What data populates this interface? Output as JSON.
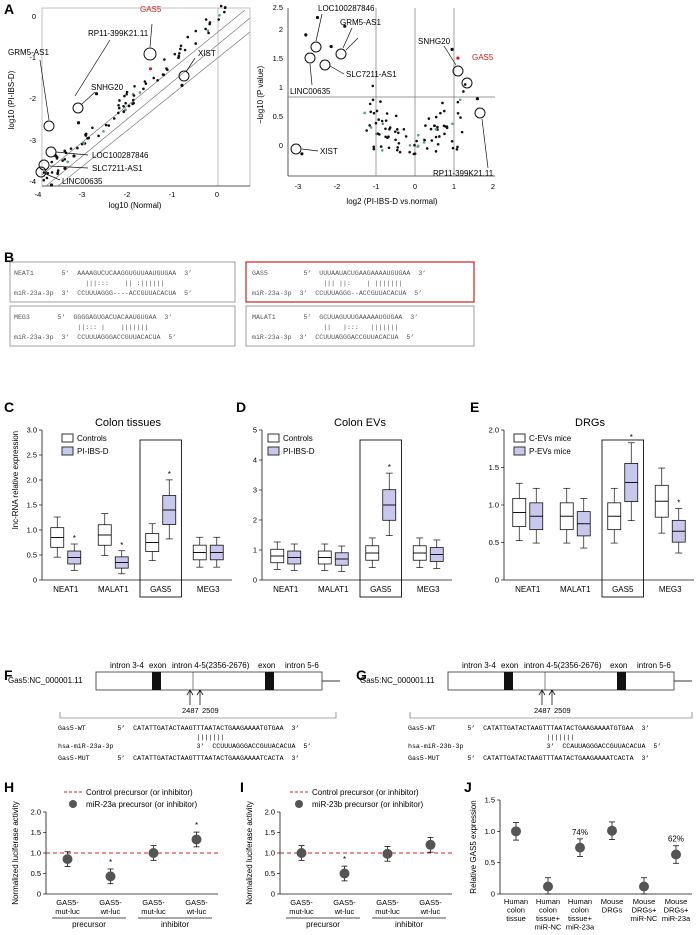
{
  "colors": {
    "accent": "#cc2222",
    "box_fill": "#c8c8ec",
    "dot": "#555555",
    "teal": "#5a9a8a"
  },
  "panel_a": {
    "label": "A",
    "scatter": {
      "xlabel": "log10 (Normal)",
      "ylabel": "log10 (PI-IBS-D)",
      "xticks": [
        "-4",
        "-3",
        "-2",
        "-1",
        "0"
      ],
      "yticks": [
        "-4",
        "-3",
        "-2",
        "-1",
        "0"
      ],
      "annotations": [
        "GAS5",
        "RP11-399K21.11",
        "GRM5-AS1",
        "SNHG20",
        "XIST",
        "LOC100287846",
        "SLC7211-AS1",
        "LINC00635"
      ]
    },
    "volcano": {
      "xlabel": "log2 (PI-IBS-D vs.normal)",
      "ylabel": "−log10 (P value)",
      "xticks": [
        "-3",
        "-2",
        "-1",
        "0",
        "1",
        "2"
      ],
      "yticks": [
        "0",
        "0.5",
        "1",
        "1.5",
        "2",
        "2.5"
      ],
      "annotations": [
        "LOC100287846",
        "GRM5-AS1",
        "SLC7211-AS1",
        "LINC00635",
        "SNHG20",
        "GAS5",
        "XIST",
        "RP11-399K21.11"
      ]
    }
  },
  "panel_b": {
    "label": "B",
    "boxes": [
      {
        "name": "NEAT1",
        "l1": "NEAT1       5’  AAAAGUCUCAAGGUGUUAAUGUGAA  3’",
        "l2": "                  |||:::    || :||||||",
        "l3": "miR-23a-3p  3’  CCUUUAGGG----ACCGUUACACUA  5’"
      },
      {
        "name": "GAS5",
        "l1": "GAS5         5’  UUUAAUACUGAAGAAAAUGUGAA  3’",
        "l2": "                  ||| ||:    | |||||||",
        "l3": "miR-23a-3p  3’  CCUUUAGGG--ACCGUUACACUA  5’"
      },
      {
        "name": "MEG3",
        "l1": "MEG3       5’  GGGGAGUGACUACAAUGUGAA  3’",
        "l2": "                ||::: |    |||||||",
        "l3": "miR-23a-3p  3’  CCUUUAGGGACCGUUACACUA  5’"
      },
      {
        "name": "MALAT1",
        "l1": "MALAT1       5’  GCUUAGUUUGAAAAAUGUGAA  3’",
        "l2": "                  ||   |:::   |||||||",
        "l3": "miR-23a-3p  3’  CCUUUAGGGACCGUUACACUA  5’"
      }
    ]
  },
  "panel_c": {
    "label": "C",
    "title": "Colon tissues",
    "ylabel": "lnc-RNA relative expression",
    "legend": [
      "Controls",
      "PI-IBS-D"
    ],
    "categories": [
      "NEAT1",
      "MALAT1",
      "GAS5",
      "MEG3"
    ],
    "yticks": [
      "0",
      "0.5",
      "1.0",
      "1.5",
      "2.0",
      "2.5",
      "3.0"
    ]
  },
  "panel_d": {
    "label": "D",
    "title": "Colon EVs",
    "legend": [
      "Controls",
      "PI-IBS-D"
    ],
    "categories": [
      "NEAT1",
      "MALAT1",
      "GAS5",
      "MEG3"
    ],
    "yticks": [
      "0",
      "1",
      "2",
      "3",
      "4",
      "5"
    ]
  },
  "panel_e": {
    "label": "E",
    "title": "DRGs",
    "legend": [
      "C-EVs mice",
      "P-EVs mice"
    ],
    "categories": [
      "NEAT1",
      "MALAT1",
      "GAS5",
      "MEG3"
    ],
    "yticks": [
      "0",
      "0.5",
      "1.0",
      "1.5",
      "2.0"
    ]
  },
  "panel_f": {
    "label": "F",
    "gene": "Gas5:NC_000001.11",
    "segments": [
      "intron 3-4",
      "exon",
      "intron 4-5(2356-2676)",
      "exon",
      "intron 5-6"
    ],
    "pos1": "2487",
    "pos2": "2509",
    "wt": "Gas5-WT        5’  CATATTGATACTAAGTTTAATACTGAAGAAAATGTGAA  3’",
    "pair": "                                   |||||||",
    "mir": "hsa-miR-23a-3p                     3’  CCUUUAGGGACCGUUACACUA  5’",
    "mut": "Gas5-MUT       5’  CATATTGATACTAAGTTTAATACTGAAGAAAATCACTA  3’"
  },
  "panel_g": {
    "label": "G",
    "gene": "Gas5:NC_000001.11",
    "segments": [
      "intron 3-4",
      "exon",
      "intron 4-5(2356-2676)",
      "exon",
      "intron 5-6"
    ],
    "pos1": "2487",
    "pos2": "2509",
    "wt": "Gas5-WT        5’  CATATTGATACTAAGTTTAATACTGAAGAAAATGTGAA  3’",
    "pair": "                                   |||||||",
    "mir": "hsa-miR-23b-3p                     3’  CCAUUAGGGACCGUUACACUA  5’",
    "mut": "Gas5-MUT       5’  CATATTGATACTAAGTTTAATACTGAAGAAAATCACTA  3’"
  },
  "panel_h": {
    "label": "H",
    "ylabel": "Normalized luciferase activity",
    "legend": [
      "Control precursor (or inhibitor)",
      "miR-23a precursor (or inhibitor)"
    ],
    "groups": [
      "precursor",
      "inhibitor"
    ],
    "yticks": [
      "0",
      "0.5",
      "1.0",
      "1.5",
      "2.0"
    ]
  },
  "panel_i": {
    "label": "I",
    "ylabel": "Normalized luciferase activity",
    "legend": [
      "Control precursor (or inhibitor)",
      "miR-23b precursor (or inhibitor)"
    ],
    "groups": [
      "precursor",
      "inhibitor"
    ],
    "yticks": [
      "0",
      "0.5",
      "1.0",
      "1.5",
      "2.0"
    ]
  },
  "panel_j": {
    "label": "J",
    "ylabel": "Relative GAS5 expression",
    "yticks": [
      "0",
      "0.5",
      "1.0",
      "1.5"
    ],
    "pct": [
      "74%",
      "62%"
    ]
  },
  "chart_data": [
    {
      "type": "scatter",
      "panel": "A-left",
      "xlabel": "log10 (Normal)",
      "ylabel": "log10 (PI-IBS-D)",
      "xlim": [
        -4,
        0.3
      ],
      "ylim": [
        -4.3,
        0.3
      ],
      "labeled_points": [
        {
          "name": "GAS5",
          "x": -1.5,
          "y": -1.2
        },
        {
          "name": "RP11-399K21.11",
          "x": -2.7,
          "y": -1.8
        },
        {
          "name": "GRM5-AS1",
          "x": -3.6,
          "y": -3.3
        },
        {
          "name": "SNHG20",
          "x": -3.1,
          "y": -2.5
        },
        {
          "name": "XIST",
          "x": -0.8,
          "y": -1.6
        },
        {
          "name": "LOC100287846",
          "x": -3.2,
          "y": -3.3
        },
        {
          "name": "SLC7211-AS1",
          "x": -3.4,
          "y": -3.6
        },
        {
          "name": "LINC00635",
          "x": -3.7,
          "y": -4.0
        }
      ]
    },
    {
      "type": "scatter",
      "panel": "A-right",
      "xlabel": "log2 (PI-IBS-D vs.normal)",
      "ylabel": "−log10 (P value)",
      "xlim": [
        -3.2,
        2.1
      ],
      "ylim": [
        -0.4,
        2.6
      ],
      "labeled_points": [
        {
          "name": "LOC100287846",
          "x": -2.5,
          "y": 2.25
        },
        {
          "name": "GRM5-AS1",
          "x": -1.8,
          "y": 2.1
        },
        {
          "name": "SLC7211-AS1",
          "x": -2.15,
          "y": 1.75
        },
        {
          "name": "LINC00635",
          "x": -2.8,
          "y": 1.95
        },
        {
          "name": "SNHG20",
          "x": 0.95,
          "y": 1.7
        },
        {
          "name": "GAS5",
          "x": 1.1,
          "y": 1.55
        },
        {
          "name": "XIST",
          "x": -2.9,
          "y": -0.1
        },
        {
          "name": "RP11-399K21.11",
          "x": 1.6,
          "y": 0.85
        }
      ]
    },
    {
      "type": "box",
      "panel": "C",
      "title": "Colon tissues",
      "categories": [
        "NEAT1",
        "MALAT1",
        "GAS5",
        "MEG3"
      ],
      "series": [
        {
          "name": "Controls",
          "values": [
            0.85,
            0.9,
            0.75,
            0.55
          ]
        },
        {
          "name": "PI-IBS-D",
          "values": [
            0.45,
            0.35,
            1.4,
            0.55
          ]
        }
      ],
      "ylim": [
        0,
        3
      ]
    },
    {
      "type": "box",
      "panel": "D",
      "title": "Colon EVs",
      "categories": [
        "NEAT1",
        "MALAT1",
        "GAS5",
        "MEG3"
      ],
      "series": [
        {
          "name": "Controls",
          "values": [
            0.8,
            0.75,
            0.9,
            0.9
          ]
        },
        {
          "name": "PI-IBS-D",
          "values": [
            0.75,
            0.7,
            2.5,
            0.85
          ]
        }
      ],
      "ylim": [
        0,
        5
      ]
    },
    {
      "type": "box",
      "panel": "E",
      "title": "DRGs",
      "categories": [
        "NEAT1",
        "MALAT1",
        "GAS5",
        "MEG3"
      ],
      "series": [
        {
          "name": "C-EVs mice",
          "values": [
            0.9,
            0.85,
            0.85,
            1.05
          ]
        },
        {
          "name": "P-EVs mice",
          "values": [
            0.85,
            0.75,
            1.3,
            0.65
          ]
        }
      ],
      "ylim": [
        0,
        2
      ]
    },
    {
      "type": "scatter",
      "panel": "H",
      "categories": [
        "GAS5-mut-luc",
        "GAS5-wt-luc",
        "GAS5-mut-luc",
        "GAS5-wt-luc"
      ],
      "values": [
        0.85,
        0.43,
        1.0,
        1.33
      ],
      "ylim": [
        0,
        2
      ],
      "reference": 1.0
    },
    {
      "type": "scatter",
      "panel": "I",
      "categories": [
        "GAS5-mut-luc",
        "GAS5-wt-luc",
        "GAS5-mut-luc",
        "GAS5-wt-luc"
      ],
      "values": [
        1.0,
        0.5,
        0.98,
        1.2
      ],
      "ylim": [
        0,
        2
      ],
      "reference": 1.0
    },
    {
      "type": "scatter",
      "panel": "J",
      "categories": [
        "Human colon tissue",
        "Human colon tissue+ miR-NC",
        "Human colon tissue+ miR-23a",
        "Mouse DRGs",
        "Mouse DRGs+ miR-NC",
        "Mouse DRGs+ miR-23a"
      ],
      "values": [
        1.0,
        0.12,
        0.74,
        1.01,
        0.12,
        0.63
      ],
      "ylim": [
        0,
        1.5
      ]
    }
  ]
}
